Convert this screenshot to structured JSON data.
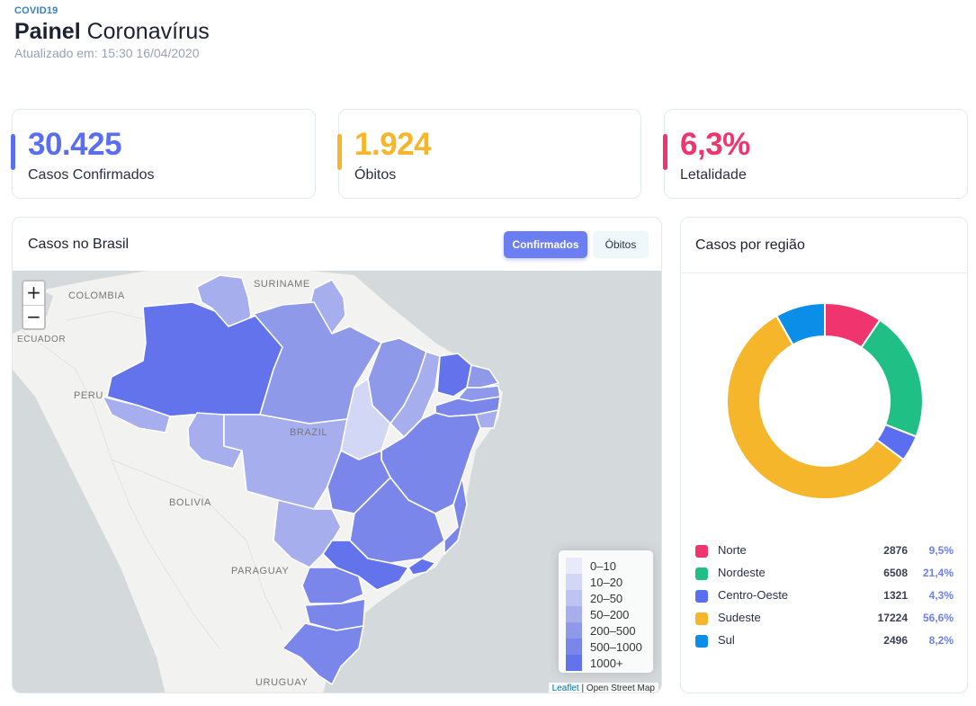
{
  "header": {
    "brand": "COVID19",
    "title_bold": "Painel",
    "title_rest": " Coronavírus",
    "updated": "Atualizado em: 15:30 16/04/2020"
  },
  "stats": [
    {
      "value": "30.425",
      "label": "Casos Confirmados",
      "color": "#5b6ef0"
    },
    {
      "value": "1.924",
      "label": "Óbitos",
      "color": "#f6b62b"
    },
    {
      "value": "6,3%",
      "label": "Letalidade",
      "color": "#f0356e"
    }
  ],
  "map_card": {
    "title": "Casos no Brasil",
    "btn_confirmed": "Confirmados",
    "btn_deaths": "Óbitos",
    "zoom_in": "+",
    "zoom_out": "−",
    "place_labels": [
      "COLOMBIA",
      "SURINAME",
      "ECUADOR",
      "PERU",
      "BRAZIL",
      "BOLIVIA",
      "PARAGUAY",
      "URUGUAY"
    ],
    "legend": [
      {
        "label": "0–10",
        "color": "#e8eafb"
      },
      {
        "label": "10–20",
        "color": "#d3d7f6"
      },
      {
        "label": "20–50",
        "color": "#bec4f1"
      },
      {
        "label": "50–200",
        "color": "#a6aeed"
      },
      {
        "label": "200–500",
        "color": "#8f99ea"
      },
      {
        "label": "500–1000",
        "color": "#7a86ea"
      },
      {
        "label": "1000+",
        "color": "#6373ec"
      }
    ],
    "attribution_link": "Leaflet",
    "attribution_text": " | Open Street Map"
  },
  "region_card": {
    "title": "Casos por região",
    "regions": [
      {
        "name": "Norte",
        "count": "2876",
        "pct": "9,5%",
        "value": 9.5,
        "color": "#f0356e"
      },
      {
        "name": "Nordeste",
        "count": "6508",
        "pct": "21,4%",
        "value": 21.4,
        "color": "#1fbf86"
      },
      {
        "name": "Centro-Oeste",
        "count": "1321",
        "pct": "4,3%",
        "value": 4.3,
        "color": "#5b6ef0"
      },
      {
        "name": "Sudeste",
        "count": "17224",
        "pct": "56,6%",
        "value": 56.6,
        "color": "#f6b62b"
      },
      {
        "name": "Sul",
        "count": "2496",
        "pct": "8,2%",
        "value": 8.2,
        "color": "#0b8ee8"
      }
    ]
  }
}
